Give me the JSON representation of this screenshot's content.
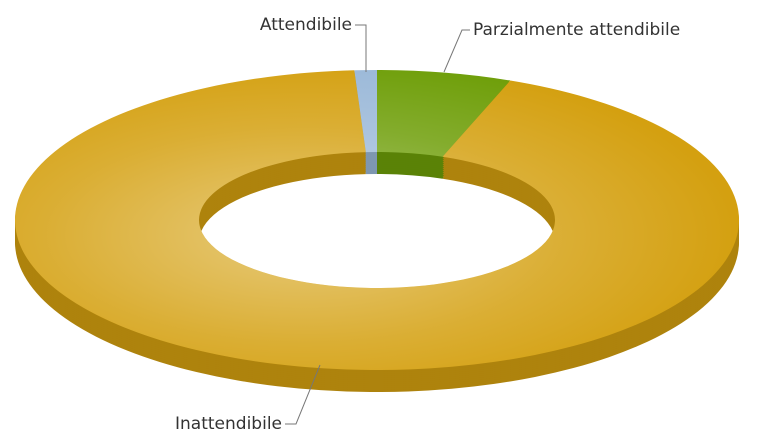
{
  "chart_data": {
    "type": "donut3d",
    "categories": [
      "Attendibile",
      "Parzialmente attendibile",
      "Inattendibile"
    ],
    "values": [
      1,
      6,
      93
    ],
    "colors": [
      "#9ab8d8",
      "#6e9e08",
      "#d4a010"
    ]
  }
}
